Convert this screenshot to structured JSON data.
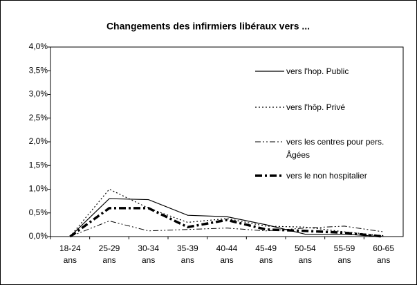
{
  "chart_data": {
    "type": "line",
    "title": "Changements des infirmiers libéraux vers ...",
    "categories": [
      "18-24 ans",
      "25-29 ans",
      "30-34 ans",
      "35-39 ans",
      "40-44 ans",
      "45-49 ans",
      "50-54 ans",
      "55-59 ans",
      "60-65 ans"
    ],
    "series": [
      {
        "name": "vers l'hop. Public",
        "color": "#000000",
        "dash": "solid",
        "width": 1.2,
        "values": [
          0,
          0.8,
          0.78,
          0.45,
          0.42,
          0.25,
          0.05,
          0.05,
          0
        ]
      },
      {
        "name": "vers l'hôp. Privé",
        "color": "#000000",
        "dash": "dotted",
        "width": 1.2,
        "values": [
          0,
          1.0,
          0.6,
          0.3,
          0.38,
          0.22,
          0.2,
          0.1,
          0.02
        ]
      },
      {
        "name": "vers les centres pour pers. Âgées",
        "color": "#000000",
        "dash": "dashdotdot",
        "width": 1,
        "values": [
          0,
          0.33,
          0.12,
          0.15,
          0.18,
          0.12,
          0.18,
          0.22,
          0.1
        ]
      },
      {
        "name": "vers le non hospitalier",
        "color": "#000000",
        "dash": "dashed",
        "width": 3.5,
        "values": [
          0,
          0.6,
          0.6,
          0.2,
          0.35,
          0.15,
          0.12,
          0.08,
          0
        ]
      }
    ],
    "ylim": [
      0,
      4
    ],
    "yticks": [
      {
        "value": 0,
        "label": "0,0%"
      },
      {
        "value": 0.5,
        "label": "0,5%"
      },
      {
        "value": 1,
        "label": "1,0%"
      },
      {
        "value": 1.5,
        "label": "1,5%"
      },
      {
        "value": 2,
        "label": "2,0%"
      },
      {
        "value": 2.5,
        "label": "2,5%"
      },
      {
        "value": 3,
        "label": "3,0%"
      },
      {
        "value": 3.5,
        "label": "3,5%"
      },
      {
        "value": 4,
        "label": "4,0%"
      }
    ],
    "grid": false,
    "legend": "top-right"
  }
}
